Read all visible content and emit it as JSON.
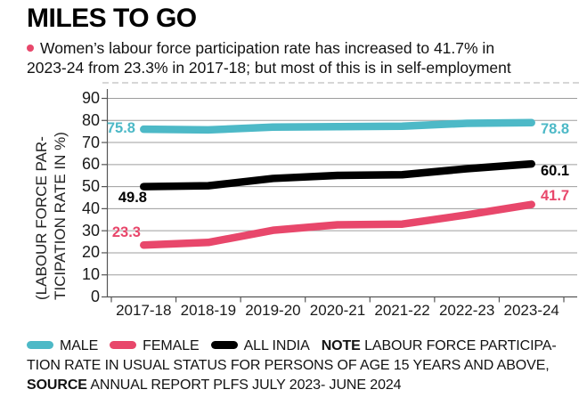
{
  "title": "MILES TO GO",
  "subtitle": {
    "line1": "Women’s labour force participation rate has increased to 41.7% in",
    "line2": "2023-24 from 23.3% in 2017-18; but most of this is in self-employment",
    "bullet_color": "#e8476b"
  },
  "chart_data": {
    "type": "line",
    "title": "MILES TO GO",
    "categories": [
      "2017-18",
      "2018-19",
      "2019-20",
      "2020-21",
      "2021-22",
      "2022-23",
      "2023-24"
    ],
    "series": [
      {
        "name": "MALE",
        "color": "#4db9c7",
        "values": [
          75.8,
          75.5,
          76.8,
          77.0,
          77.2,
          78.5,
          78.8
        ],
        "start_label": "75.8",
        "end_label": "78.8"
      },
      {
        "name": "FEMALE",
        "color": "#e8476b",
        "values": [
          23.3,
          24.5,
          30.0,
          32.5,
          32.8,
          37.0,
          41.7
        ],
        "start_label": "23.3",
        "end_label": "41.7"
      },
      {
        "name": "ALL INDIA",
        "color": "#000000",
        "values": [
          49.8,
          50.2,
          53.5,
          54.9,
          55.2,
          57.9,
          60.1
        ],
        "start_label": "49.8",
        "end_label": "60.1"
      }
    ],
    "xlabel": "",
    "ylabel_line1": "(LABOUR FORCE PAR-",
    "ylabel_line2": "TICIPATION RATE IN %)",
    "ylim": [
      0,
      90
    ],
    "y_ticks": [
      90,
      80,
      70,
      60,
      50,
      40,
      30,
      20,
      10,
      0
    ],
    "grid": true,
    "legend_position": "bottom",
    "gridline_color": "#9d9d9d",
    "axis_color": "#555555"
  },
  "note": {
    "note_label": "NOTE",
    "note_text_line1": "LABOUR FORCE PARTICIPA-",
    "note_text_line2": "TION RATE IN USUAL STATUS FOR PERSONS OF AGE 15 YEARS AND ABOVE,",
    "source_label": "SOURCE",
    "source_text": "ANNUAL REPORT PLFS JULY 2023- JUNE 2024"
  }
}
